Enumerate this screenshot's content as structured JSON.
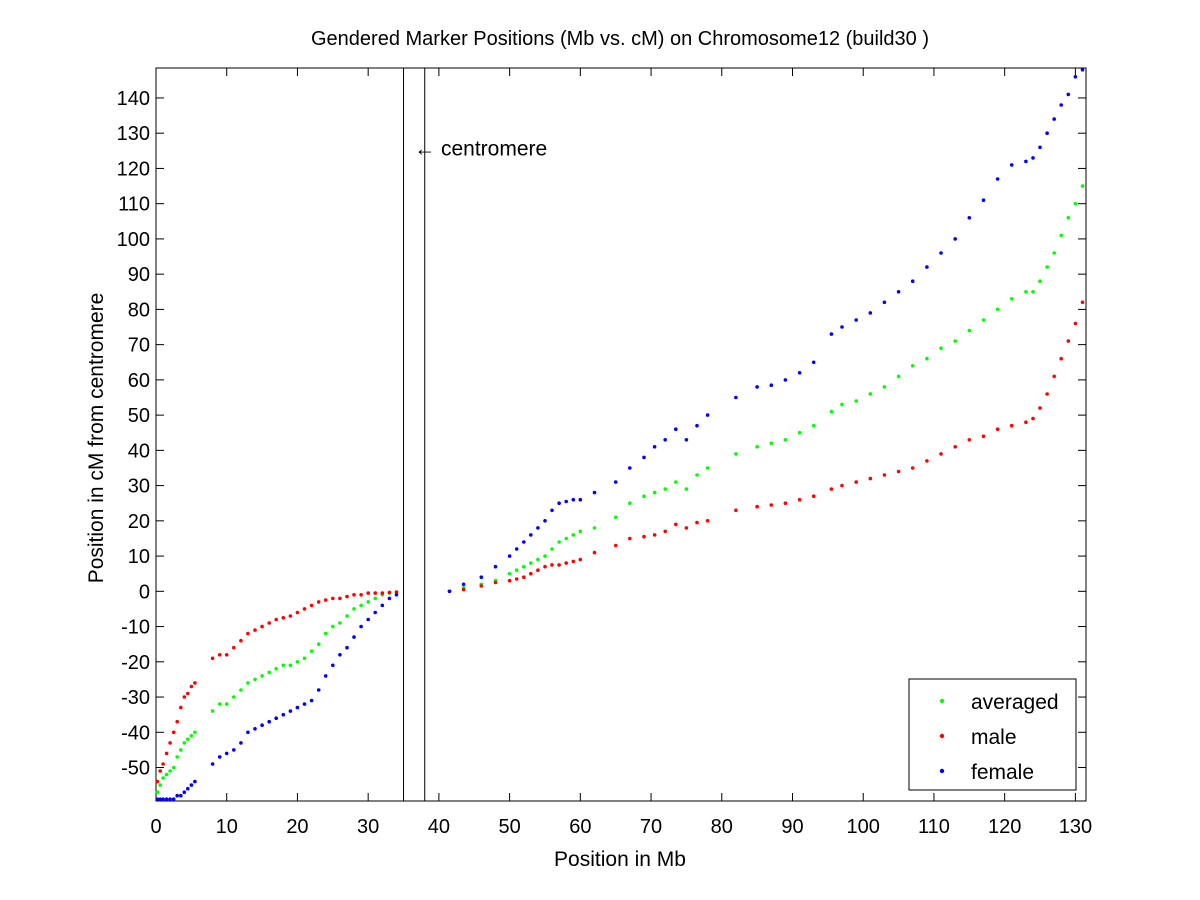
{
  "chart_data": {
    "type": "scatter",
    "title": "Gendered Marker Positions (Mb vs. cM) on Chromosome12 (build30 )",
    "xlabel": "Position in Mb",
    "ylabel": "Position in cM from centromere",
    "xlim": [
      0,
      131.5
    ],
    "ylim": [
      -59.5,
      148.5
    ],
    "xticks": [
      0,
      10,
      20,
      30,
      40,
      50,
      60,
      70,
      80,
      90,
      100,
      110,
      120,
      130
    ],
    "yticks": [
      -50,
      -40,
      -30,
      -20,
      -10,
      0,
      10,
      20,
      30,
      40,
      50,
      60,
      70,
      80,
      90,
      100,
      110,
      120,
      130,
      140
    ],
    "grid": false,
    "legend_position": "bottom-right",
    "centromere_lines": [
      35,
      38
    ],
    "annotation": {
      "text": "← centromere",
      "x": 36.5,
      "y": 126
    },
    "series": [
      {
        "name": "averaged",
        "color": "#00ff00",
        "x": [
          0.2,
          0.6,
          1.0,
          1.5,
          2.0,
          2.5,
          3.0,
          3.5,
          4.0,
          4.5,
          5.0,
          5.5,
          8.0,
          9.0,
          10.0,
          11.0,
          12.0,
          13.0,
          14.0,
          15.0,
          16.0,
          17.0,
          18.0,
          19.0,
          20.0,
          21.0,
          22.0,
          23.0,
          24.0,
          25.0,
          26.0,
          27.0,
          28.0,
          29.0,
          30.0,
          31.0,
          32.0,
          33.0,
          34.0,
          41.5,
          43.5,
          46.0,
          48.0,
          50.0,
          51.0,
          52.0,
          53.0,
          54.0,
          55.0,
          56.0,
          57.0,
          58.0,
          59.0,
          60.0,
          62.0,
          65.0,
          67.0,
          69.0,
          70.5,
          72.0,
          73.5,
          75.0,
          76.5,
          78.0,
          82.0,
          85.0,
          87.0,
          89.0,
          91.0,
          93.0,
          95.5,
          97.0,
          99.0,
          101.0,
          103.0,
          105.0,
          107.0,
          109.0,
          111.0,
          113.0,
          115.0,
          117.0,
          119.0,
          121.0,
          123.0,
          124.0,
          125.0,
          126.0,
          127.0,
          128.0,
          129.0,
          130.0,
          131.0
        ],
        "y": [
          -57,
          -55,
          -53,
          -52,
          -51,
          -50,
          -47,
          -45,
          -43,
          -42,
          -41,
          -40,
          -34,
          -32,
          -32,
          -30,
          -28,
          -26,
          -25,
          -24,
          -23,
          -22,
          -21,
          -21,
          -20,
          -19,
          -17,
          -15,
          -12,
          -10,
          -9,
          -7,
          -5,
          -4,
          -3,
          -2,
          -1,
          -0.5,
          -0.2,
          0,
          1,
          2,
          3,
          5,
          6,
          7,
          8,
          9,
          10,
          12,
          14,
          15,
          16,
          17,
          18,
          21,
          25,
          27,
          28,
          29,
          31,
          29,
          33,
          35,
          39,
          41,
          42,
          43,
          45,
          47,
          51,
          53,
          54,
          56,
          58,
          61,
          64,
          66,
          69,
          71,
          74,
          77,
          80,
          83,
          85,
          85,
          88,
          92,
          96,
          101,
          106,
          110,
          115
        ]
      },
      {
        "name": "male",
        "color": "#ff0000",
        "x": [
          0.2,
          0.6,
          1.0,
          1.5,
          2.0,
          2.5,
          3.0,
          3.5,
          4.0,
          4.5,
          5.0,
          5.5,
          8.0,
          9.0,
          10.0,
          11.0,
          12.0,
          13.0,
          14.0,
          15.0,
          16.0,
          17.0,
          18.0,
          19.0,
          20.0,
          21.0,
          22.0,
          23.0,
          24.0,
          25.0,
          26.0,
          27.0,
          28.0,
          29.0,
          30.0,
          31.0,
          32.0,
          33.0,
          34.0,
          41.5,
          43.5,
          46.0,
          48.0,
          50.0,
          51.0,
          52.0,
          53.0,
          54.0,
          55.0,
          56.0,
          57.0,
          58.0,
          59.0,
          60.0,
          62.0,
          65.0,
          67.0,
          69.0,
          70.5,
          72.0,
          73.5,
          75.0,
          76.5,
          78.0,
          82.0,
          85.0,
          87.0,
          89.0,
          91.0,
          93.0,
          95.5,
          97.0,
          99.0,
          101.0,
          103.0,
          105.0,
          107.0,
          109.0,
          111.0,
          113.0,
          115.0,
          117.0,
          119.0,
          121.0,
          123.0,
          124.0,
          125.0,
          126.0,
          127.0,
          128.0,
          129.0,
          130.0,
          131.0
        ],
        "y": [
          -54,
          -51,
          -49,
          -46,
          -43,
          -40,
          -37,
          -33,
          -30,
          -29,
          -27,
          -26,
          -19,
          -18,
          -18,
          -16,
          -14,
          -12,
          -11,
          -10,
          -9,
          -8,
          -7.5,
          -7,
          -6,
          -5,
          -4,
          -3,
          -2.5,
          -2,
          -2,
          -1.5,
          -1,
          -1,
          -0.5,
          -0.5,
          -0.5,
          -0.3,
          -0.2,
          0,
          0.5,
          1.5,
          2.5,
          3,
          3.5,
          4,
          5,
          6,
          7,
          7.5,
          7.5,
          8,
          8.5,
          9,
          11,
          13,
          15,
          15.5,
          16,
          17,
          19,
          18,
          19.5,
          20,
          23,
          24,
          24.5,
          25,
          26,
          27,
          29,
          30,
          31,
          32,
          33,
          34,
          35,
          37,
          39,
          41,
          43,
          44,
          46,
          47,
          48,
          49,
          52,
          56,
          61,
          66,
          71,
          76,
          82
        ]
      },
      {
        "name": "female",
        "color": "#0000ff",
        "x": [
          0.2,
          0.6,
          1.0,
          1.5,
          2.0,
          2.5,
          3.0,
          3.5,
          4.0,
          4.5,
          5.0,
          5.5,
          8.0,
          9.0,
          10.0,
          11.0,
          12.0,
          13.0,
          14.0,
          15.0,
          16.0,
          17.0,
          18.0,
          19.0,
          20.0,
          21.0,
          22.0,
          23.0,
          24.0,
          25.0,
          26.0,
          27.0,
          28.0,
          29.0,
          30.0,
          31.0,
          32.0,
          33.0,
          34.0,
          41.5,
          43.5,
          46.0,
          48.0,
          50.0,
          51.0,
          52.0,
          53.0,
          54.0,
          55.0,
          56.0,
          57.0,
          58.0,
          59.0,
          60.0,
          62.0,
          65.0,
          67.0,
          69.0,
          70.5,
          72.0,
          73.5,
          75.0,
          76.5,
          78.0,
          82.0,
          85.0,
          87.0,
          89.0,
          91.0,
          93.0,
          95.5,
          97.0,
          99.0,
          101.0,
          103.0,
          105.0,
          107.0,
          109.0,
          111.0,
          113.0,
          115.0,
          117.0,
          119.0,
          121.0,
          123.0,
          124.0,
          125.0,
          126.0,
          127.0,
          128.0,
          129.0,
          130.0,
          131.0
        ],
        "y": [
          -59,
          -59,
          -59,
          -59,
          -59,
          -59,
          -58,
          -58,
          -57,
          -56,
          -55,
          -54,
          -49,
          -47,
          -46,
          -45,
          -43,
          -40,
          -39,
          -38,
          -37,
          -36,
          -35,
          -34,
          -33,
          -32,
          -31,
          -28,
          -24,
          -21,
          -18,
          -16,
          -13,
          -10,
          -8,
          -6,
          -4,
          -2,
          -1,
          0,
          2,
          4,
          7,
          10,
          12,
          14,
          16,
          18,
          20,
          23,
          25,
          25.5,
          26,
          26,
          28,
          31,
          35,
          38,
          41,
          43,
          46,
          43,
          47,
          50,
          55,
          58,
          58.5,
          60,
          62,
          65,
          73,
          75,
          77,
          79,
          82,
          85,
          88,
          92,
          96,
          100,
          106,
          111,
          117,
          121,
          122,
          123,
          126,
          130,
          134,
          138,
          141,
          146,
          148
        ]
      }
    ]
  }
}
